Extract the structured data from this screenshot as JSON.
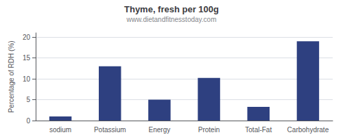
{
  "chart_data": {
    "type": "bar",
    "title": "Thyme, fresh per 100g",
    "subtitle": "www.dietandfitnesstoday.com",
    "categories": [
      "sodium",
      "Potassium",
      "Energy",
      "Protein",
      "Total-Fat",
      "Carbohydrate"
    ],
    "values": [
      1,
      13,
      5,
      10.2,
      3.3,
      19
    ],
    "color": "#2e4080",
    "ylabel": "Percentage of RDH (%)",
    "ylim": [
      0,
      21
    ],
    "yticks": [
      0,
      5,
      10,
      15,
      20
    ],
    "grid": true
  }
}
